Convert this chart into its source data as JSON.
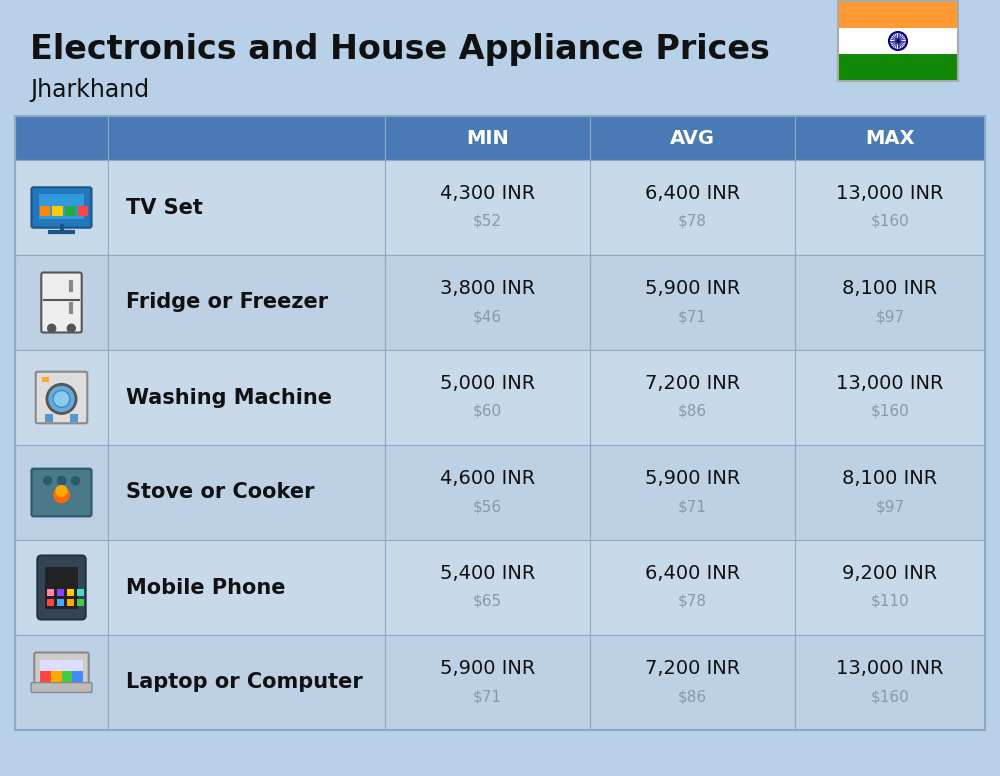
{
  "title": "Electronics and House Appliance Prices",
  "subtitle": "Jharkhand",
  "background_color": "#b8d0e8",
  "header_color": "#4a7ab5",
  "header_text_color": "#ffffff",
  "row_bg_even": "#c8daea",
  "row_bg_odd": "#bdd0e4",
  "cell_border_color": "#8aaac8",
  "columns": [
    "MIN",
    "AVG",
    "MAX"
  ],
  "rows": [
    {
      "name": "TV Set",
      "min_inr": "4,300 INR",
      "min_usd": "$52",
      "avg_inr": "6,400 INR",
      "avg_usd": "$78",
      "max_inr": "13,000 INR",
      "max_usd": "$160"
    },
    {
      "name": "Fridge or Freezer",
      "min_inr": "3,800 INR",
      "min_usd": "$46",
      "avg_inr": "5,900 INR",
      "avg_usd": "$71",
      "max_inr": "8,100 INR",
      "max_usd": "$97"
    },
    {
      "name": "Washing Machine",
      "min_inr": "5,000 INR",
      "min_usd": "$60",
      "avg_inr": "7,200 INR",
      "avg_usd": "$86",
      "max_inr": "13,000 INR",
      "max_usd": "$160"
    },
    {
      "name": "Stove or Cooker",
      "min_inr": "4,600 INR",
      "min_usd": "$56",
      "avg_inr": "5,900 INR",
      "avg_usd": "$71",
      "max_inr": "8,100 INR",
      "max_usd": "$97"
    },
    {
      "name": "Mobile Phone",
      "min_inr": "5,400 INR",
      "min_usd": "$65",
      "avg_inr": "6,400 INR",
      "avg_usd": "$78",
      "max_inr": "9,200 INR",
      "max_usd": "$110"
    },
    {
      "name": "Laptop or Computer",
      "min_inr": "5,900 INR",
      "min_usd": "$71",
      "avg_inr": "7,200 INR",
      "avg_usd": "$86",
      "max_inr": "13,000 INR",
      "max_usd": "$160"
    }
  ],
  "inr_fontsize": 14,
  "usd_fontsize": 11,
  "name_fontsize": 15,
  "header_fontsize": 14,
  "title_fontsize": 24,
  "subtitle_fontsize": 17
}
